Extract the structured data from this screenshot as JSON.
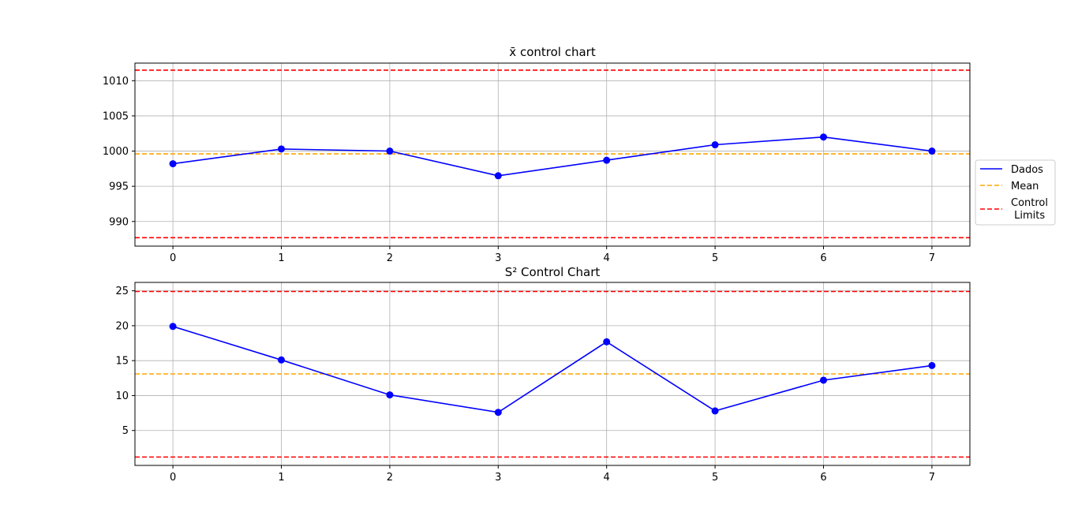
{
  "chart_data": [
    {
      "type": "line",
      "title": "x̄ control chart",
      "xlabel": "",
      "ylabel": "",
      "x": [
        0,
        1,
        2,
        3,
        4,
        5,
        6,
        7
      ],
      "series": [
        {
          "name": "Dados",
          "values": [
            998.2,
            1000.3,
            1000.0,
            996.5,
            998.7,
            1000.9,
            1002.0,
            1000.0
          ],
          "color": "#0000ff",
          "style": "solid",
          "markers": true
        }
      ],
      "reference_lines": [
        {
          "name": "Mean",
          "value": 999.6,
          "color": "#ffa500",
          "style": "dashed"
        },
        {
          "name": "Control Limits",
          "value": 1011.5,
          "color": "#ff0000",
          "style": "dashed"
        },
        {
          "name": "Control Limits",
          "value": 987.7,
          "color": "#ff0000",
          "style": "dashed"
        }
      ],
      "xlim": [
        -0.35,
        7.35
      ],
      "ylim": [
        986.5,
        1012.5
      ],
      "xticks": [
        "0",
        "1",
        "2",
        "3",
        "4",
        "5",
        "6",
        "7"
      ],
      "yticks": [
        "990",
        "995",
        "1000",
        "1005",
        "1010"
      ],
      "grid": true
    },
    {
      "type": "line",
      "title": "S² Control Chart",
      "xlabel": "",
      "ylabel": "",
      "x": [
        0,
        1,
        2,
        3,
        4,
        5,
        6,
        7
      ],
      "series": [
        {
          "name": "Dados",
          "values": [
            19.9,
            15.1,
            10.1,
            7.6,
            17.7,
            7.8,
            12.2,
            14.3
          ],
          "color": "#0000ff",
          "style": "solid",
          "markers": true
        }
      ],
      "reference_lines": [
        {
          "name": "Mean",
          "value": 13.1,
          "color": "#ffa500",
          "style": "dashed"
        },
        {
          "name": "Control Limits",
          "value": 24.9,
          "color": "#ff0000",
          "style": "dashed"
        },
        {
          "name": "Control Limits",
          "value": 1.2,
          "color": "#ff0000",
          "style": "dashed"
        }
      ],
      "xlim": [
        -0.35,
        7.35
      ],
      "ylim": [
        0.0,
        26.2
      ],
      "xticks": [
        "0",
        "1",
        "2",
        "3",
        "4",
        "5",
        "6",
        "7"
      ],
      "yticks": [
        "5",
        "10",
        "15",
        "20",
        "25"
      ],
      "grid": true
    }
  ],
  "legend": {
    "position": "right",
    "entries": [
      {
        "label": "Dados",
        "color": "#0000ff",
        "style": "solid"
      },
      {
        "label": "Mean",
        "color": "#ffa500",
        "style": "dashed"
      },
      {
        "label_line1": "Control",
        "label_line2": " Limits",
        "color": "#ff0000",
        "style": "dashed"
      }
    ]
  }
}
